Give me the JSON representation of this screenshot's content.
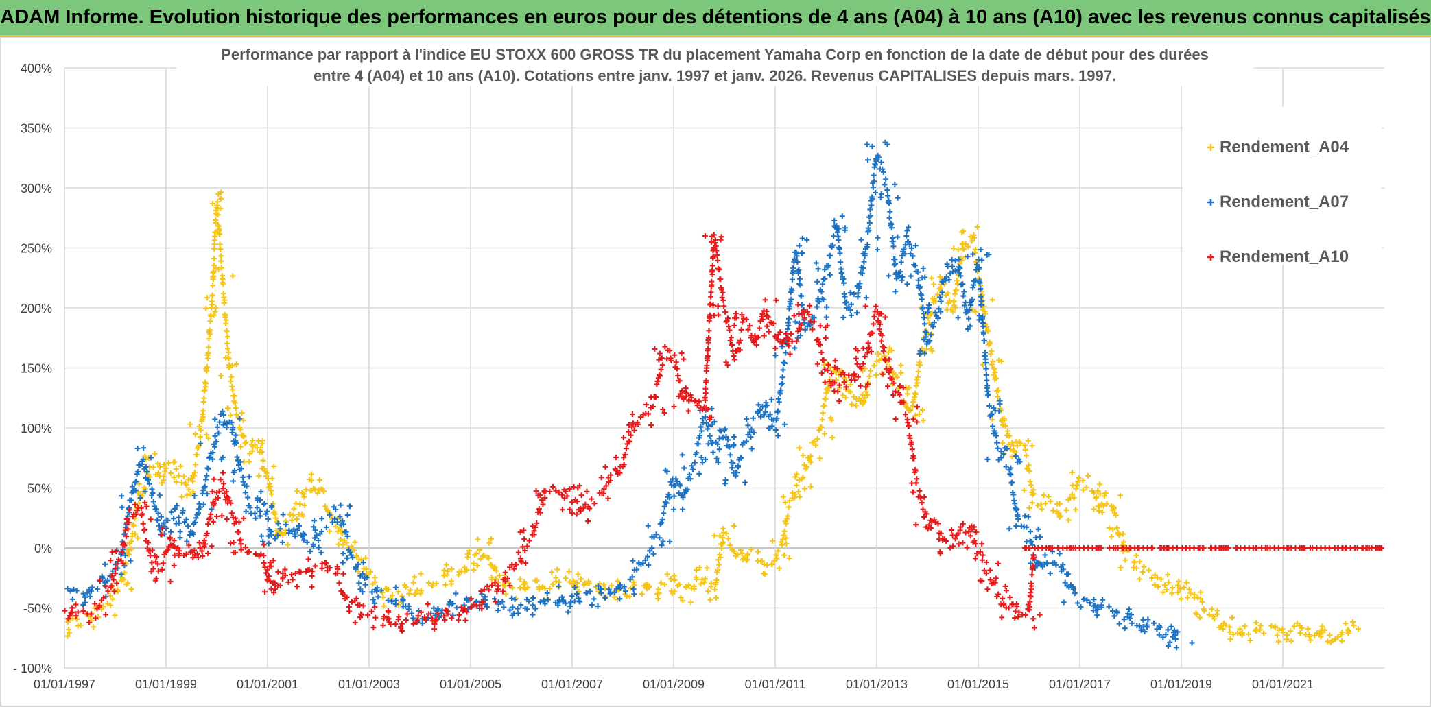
{
  "header": {
    "title": "ADAM Informe. Evolution historique des performances en euros pour des détentions de 4 ans (A04) à 10 ans (A10) avec les revenus connus capitalisés"
  },
  "chart_data": {
    "type": "scatter",
    "title_line1": "Performance par rapport à l'indice EU STOXX 600 GROSS TR  du placement Yamaha Corp en fonction de la date de début pour des durées",
    "title_line2": "entre 4 (A04) et 10 ans (A10). Cotations entre janv. 1997 et janv. 2026. Revenus CAPITALISES depuis mars. 1997.",
    "xlabel": "",
    "ylabel": "",
    "xlim": [
      1997.0,
      2023.0
    ],
    "ylim": [
      -100,
      400
    ],
    "y_ticks": [
      400,
      350,
      300,
      250,
      200,
      150,
      100,
      50,
      0,
      -50,
      -100
    ],
    "y_tick_labels": [
      "400%",
      "350%",
      "300%",
      "250%",
      "200%",
      "150%",
      "100%",
      "50%",
      "0%",
      "-50%",
      "- 100%"
    ],
    "x_ticks": [
      1997,
      1999,
      2001,
      2003,
      2005,
      2007,
      2009,
      2011,
      2013,
      2015,
      2017,
      2019,
      2021
    ],
    "x_tick_labels": [
      "01/01/1997",
      "01/01/1999",
      "01/01/2001",
      "01/01/2003",
      "01/01/2005",
      "01/01/2007",
      "01/01/2009",
      "01/01/2011",
      "01/01/2013",
      "01/01/2015",
      "01/01/2017",
      "01/01/2019",
      "01/01/2021"
    ],
    "grid": true,
    "legend_position": "top-right",
    "series": [
      {
        "name": "Rendement_A04",
        "color": "#f5c518",
        "marker": "+",
        "x": [
          1997.0,
          1997.4,
          1997.8,
          1998.1,
          1998.3,
          1998.5,
          1998.7,
          1998.9,
          1999.1,
          1999.3,
          1999.5,
          1999.7,
          1999.9,
          2000.0,
          2000.1,
          2000.25,
          2000.4,
          2000.6,
          2000.8,
          2001.0,
          2001.2,
          2001.4,
          2001.6,
          2001.8,
          2002.0,
          2002.3,
          2002.6,
          2002.9,
          2003.2,
          2003.5,
          2003.8,
          2004.1,
          2004.4,
          2004.7,
          2005.0,
          2005.3,
          2005.6,
          2005.9,
          2006.2,
          2006.5,
          2006.8,
          2007.1,
          2007.4,
          2007.7,
          2008.0,
          2008.3,
          2008.6,
          2008.9,
          2009.2,
          2009.5,
          2009.8,
          2010.0,
          2010.3,
          2010.6,
          2010.9,
          2011.1,
          2011.3,
          2011.5,
          2011.7,
          2011.9,
          2012.1,
          2012.3,
          2012.5,
          2012.7,
          2012.9,
          2013.1,
          2013.3,
          2013.5,
          2013.7,
          2013.9,
          2014.1,
          2014.3,
          2014.5,
          2014.7,
          2014.9,
          2015.1,
          2015.3,
          2015.5,
          2015.7,
          2015.9,
          2016.1,
          2016.4,
          2016.7,
          2017.0,
          2017.2,
          2017.4,
          2017.6,
          2017.8,
          2018.0,
          2018.3,
          2018.6,
          2018.9,
          2019.2,
          2019.5,
          2019.8,
          2020.1,
          2020.4,
          2020.7,
          2021.0,
          2021.3,
          2021.6,
          2021.9,
          2022.1,
          2022.3
        ],
        "values": [
          -65,
          -60,
          -50,
          -35,
          5,
          45,
          70,
          60,
          70,
          60,
          50,
          100,
          200,
          290,
          230,
          150,
          110,
          80,
          90,
          60,
          10,
          20,
          35,
          50,
          55,
          20,
          0,
          -15,
          -35,
          -40,
          -35,
          -30,
          -25,
          -20,
          -10,
          0,
          -30,
          -35,
          -30,
          -35,
          -25,
          -30,
          -30,
          -35,
          -35,
          -35,
          -35,
          -30,
          -40,
          -25,
          -35,
          15,
          -10,
          -5,
          -15,
          0,
          40,
          55,
          80,
          100,
          150,
          140,
          130,
          120,
          150,
          160,
          150,
          130,
          110,
          170,
          200,
          220,
          200,
          250,
          260,
          200,
          150,
          100,
          80,
          85,
          40,
          35,
          30,
          55,
          50,
          35,
          40,
          10,
          -10,
          -20,
          -30,
          -35,
          -40,
          -50,
          -65,
          -68,
          -70,
          -67,
          -72,
          -70,
          -72,
          -74,
          -72,
          -66
        ]
      },
      {
        "name": "Rendement_A07",
        "color": "#1f74c4",
        "marker": "+",
        "x": [
          1997.0,
          1997.3,
          1997.6,
          1997.9,
          1998.1,
          1998.3,
          1998.5,
          1998.7,
          1998.9,
          1999.1,
          1999.3,
          1999.5,
          1999.7,
          1999.9,
          2000.1,
          2000.3,
          2000.5,
          2000.7,
          2000.9,
          2001.1,
          2001.3,
          2001.6,
          2001.9,
          2002.1,
          2002.4,
          2002.7,
          2003.0,
          2003.3,
          2003.6,
          2003.9,
          2004.2,
          2004.5,
          2004.8,
          2005.1,
          2005.4,
          2005.7,
          2006.0,
          2006.3,
          2006.6,
          2006.9,
          2007.2,
          2007.5,
          2007.8,
          2008.1,
          2008.4,
          2008.7,
          2009.0,
          2009.2,
          2009.4,
          2009.6,
          2009.8,
          2010.0,
          2010.2,
          2010.4,
          2010.6,
          2010.8,
          2011.0,
          2011.2,
          2011.4,
          2011.6,
          2011.8,
          2012.0,
          2012.2,
          2012.4,
          2012.6,
          2012.8,
          2013.0,
          2013.2,
          2013.4,
          2013.6,
          2013.8,
          2014.0,
          2014.2,
          2014.4,
          2014.6,
          2014.8,
          2015.0,
          2015.2,
          2015.4,
          2015.6,
          2015.8,
          2016.0,
          2016.2,
          2016.4,
          2016.6,
          2016.9,
          2017.2,
          2017.5,
          2017.8,
          2018.1,
          2018.4,
          2018.7,
          2019.0
        ],
        "values": [
          -30,
          -40,
          -35,
          -20,
          -10,
          40,
          75,
          50,
          15,
          20,
          30,
          10,
          40,
          80,
          110,
          100,
          60,
          30,
          40,
          10,
          20,
          10,
          0,
          20,
          30,
          -10,
          -30,
          -40,
          -45,
          -55,
          -55,
          -50,
          -45,
          -50,
          -45,
          -50,
          -50,
          -45,
          -40,
          -45,
          -40,
          -40,
          -35,
          -30,
          -10,
          10,
          60,
          40,
          70,
          110,
          80,
          100,
          60,
          90,
          110,
          120,
          100,
          160,
          250,
          180,
          200,
          230,
          270,
          200,
          210,
          250,
          330,
          300,
          220,
          260,
          230,
          170,
          200,
          230,
          240,
          190,
          240,
          120,
          80,
          70,
          20,
          10,
          -20,
          -10,
          -15,
          -40,
          -50,
          -50,
          -55,
          -60,
          -65,
          -75,
          -72
        ]
      },
      {
        "name": "Rendement_A10",
        "color": "#e81c1c",
        "marker": "+",
        "x": [
          1997.0,
          1997.3,
          1997.6,
          1997.9,
          1998.1,
          1998.3,
          1998.5,
          1998.7,
          1998.9,
          1999.1,
          1999.3,
          1999.5,
          1999.7,
          1999.9,
          2000.1,
          2000.3,
          2000.5,
          2000.7,
          2000.9,
          2001.1,
          2001.4,
          2001.7,
          2002.0,
          2002.3,
          2002.6,
          2002.9,
          2003.2,
          2003.5,
          2003.8,
          2004.1,
          2004.4,
          2004.7,
          2005.0,
          2005.3,
          2005.6,
          2005.9,
          2006.2,
          2006.5,
          2006.8,
          2007.0,
          2007.2,
          2007.5,
          2007.8,
          2008.0,
          2008.2,
          2008.4,
          2008.6,
          2008.8,
          2009.0,
          2009.2,
          2009.4,
          2009.6,
          2009.8,
          2010.0,
          2010.2,
          2010.4,
          2010.6,
          2010.8,
          2011.0,
          2011.2,
          2011.4,
          2011.6,
          2011.8,
          2012.0,
          2012.2,
          2012.4,
          2012.6,
          2012.8,
          2013.0,
          2013.2,
          2013.4,
          2013.6,
          2013.8,
          2014.0,
          2014.2,
          2014.4,
          2014.6,
          2014.8,
          2015.0,
          2015.2,
          2015.4,
          2015.6,
          2015.8,
          2016.0,
          2016.1,
          2016.5,
          2017.0,
          2017.5,
          2018.0,
          2018.5,
          2019.0,
          2019.5,
          2020.0,
          2020.5,
          2021.0,
          2021.5,
          2022.0,
          2022.5,
          2023.0
        ],
        "values": [
          -55,
          -55,
          -50,
          -30,
          -10,
          30,
          30,
          -10,
          -20,
          10,
          -10,
          0,
          -5,
          30,
          55,
          30,
          0,
          -5,
          -10,
          -35,
          -20,
          -25,
          -15,
          -20,
          -45,
          -55,
          -60,
          -65,
          -60,
          -55,
          -60,
          -55,
          -50,
          -40,
          -30,
          -10,
          10,
          50,
          40,
          50,
          30,
          40,
          60,
          70,
          100,
          110,
          120,
          160,
          160,
          120,
          130,
          110,
          260,
          200,
          160,
          190,
          170,
          200,
          180,
          170,
          170,
          200,
          180,
          150,
          130,
          150,
          140,
          160,
          200,
          150,
          130,
          110,
          50,
          20,
          20,
          0,
          10,
          20,
          -5,
          -20,
          -40,
          -50,
          -55,
          -58,
          0,
          0,
          0,
          0,
          0,
          0,
          0,
          0,
          0,
          0,
          0,
          0,
          0,
          0,
          0
        ]
      }
    ]
  }
}
